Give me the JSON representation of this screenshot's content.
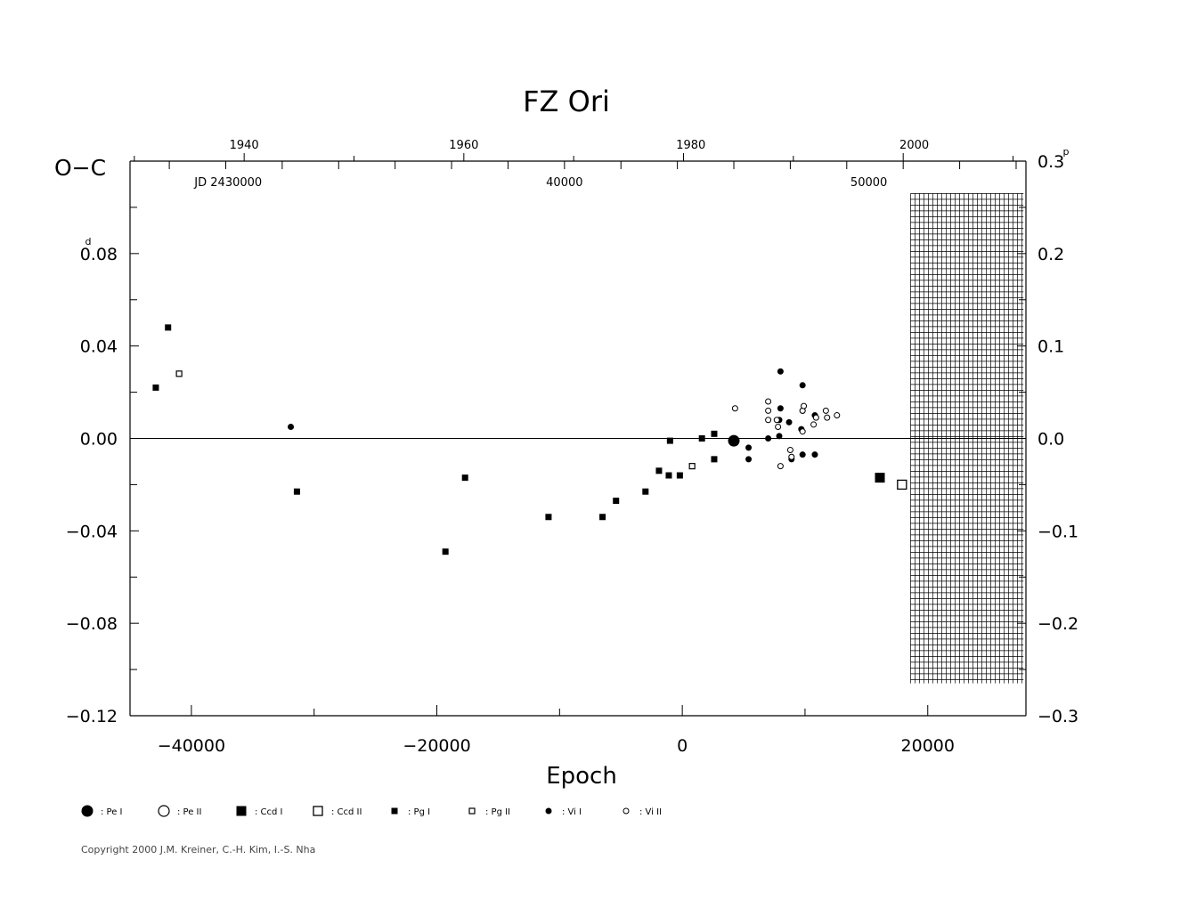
{
  "chart_data": {
    "type": "scatter",
    "title": "FZ  Ori",
    "xlabel": "Epoch",
    "ylabel": "O−C",
    "ylabel_unit_left": "d",
    "ylabel_unit_right": "p",
    "xlim": [
      -45000,
      28000
    ],
    "ylim": [
      -0.12,
      0.12
    ],
    "right_ylim": [
      -0.3,
      0.3
    ],
    "x_ticks": [
      {
        "value": -40000,
        "label": "−40000"
      },
      {
        "value": -20000,
        "label": "−20000"
      },
      {
        "value": 0,
        "label": "0"
      },
      {
        "value": 20000,
        "label": "20000"
      }
    ],
    "y_ticks": [
      {
        "value": 0.08,
        "label": "0.08"
      },
      {
        "value": 0.04,
        "label": "0.04"
      },
      {
        "value": 0.0,
        "label": "0.00"
      },
      {
        "value": -0.04,
        "label": "−0.04"
      },
      {
        "value": -0.08,
        "label": "−0.08"
      },
      {
        "value": -0.12,
        "label": "−0.12"
      }
    ],
    "right_y_ticks": [
      {
        "value": 0.3,
        "label": "0.3"
      },
      {
        "value": 0.2,
        "label": "0.2"
      },
      {
        "value": 0.1,
        "label": "0.1"
      },
      {
        "value": 0.0,
        "label": "0.0"
      },
      {
        "value": -0.1,
        "label": "−0.1"
      },
      {
        "value": -0.2,
        "label": "−0.2"
      },
      {
        "value": -0.3,
        "label": "−0.3"
      }
    ],
    "year_ticks": [
      {
        "epoch": -35700,
        "label": "1940"
      },
      {
        "epoch": -17800,
        "label": "1960"
      },
      {
        "epoch": 700,
        "label": "1980"
      },
      {
        "epoch": 18900,
        "label": "2000"
      }
    ],
    "jd_labels": [
      {
        "epoch": -37000,
        "label": "JD  2430000"
      },
      {
        "epoch": -9600,
        "label": "40000"
      },
      {
        "epoch": 15200,
        "label": "50000"
      }
    ],
    "hatch_region": {
      "x_start": 18600,
      "x_end": 27800,
      "y_start": -0.106,
      "y_end": 0.106
    },
    "legend": [
      {
        "symbol": "big-filled-circle",
        "label": ": Pe  I"
      },
      {
        "symbol": "big-open-circle",
        "label": ": Pe  II"
      },
      {
        "symbol": "big-filled-square",
        "label": ": Ccd  I"
      },
      {
        "symbol": "big-open-square",
        "label": ": Ccd  II"
      },
      {
        "symbol": "small-filled-square",
        "label": ": Pg  I"
      },
      {
        "symbol": "small-open-square",
        "label": ": Pg  II"
      },
      {
        "symbol": "small-filled-circle",
        "label": ": Vi  I"
      },
      {
        "symbol": "small-open-circle",
        "label": ": Vi  II"
      }
    ],
    "series": [
      {
        "symbol": "big-filled-circle",
        "points": [
          [
            4200,
            -0.001
          ]
        ]
      },
      {
        "symbol": "big-filled-square",
        "points": [
          [
            16100,
            -0.017
          ]
        ]
      },
      {
        "symbol": "big-open-square",
        "points": [
          [
            17900,
            -0.02
          ]
        ]
      },
      {
        "symbol": "small-filled-square",
        "points": [
          [
            -42900,
            0.022
          ],
          [
            -41900,
            0.048
          ],
          [
            -31400,
            -0.023
          ],
          [
            -19300,
            -0.049
          ],
          [
            -17700,
            -0.017
          ],
          [
            -10900,
            -0.034
          ],
          [
            -6500,
            -0.034
          ],
          [
            -5400,
            -0.027
          ],
          [
            -3000,
            -0.023
          ],
          [
            -1900,
            -0.014
          ],
          [
            -1100,
            -0.016
          ],
          [
            -1000,
            -0.001
          ],
          [
            -200,
            -0.016
          ],
          [
            1600,
            0.0
          ],
          [
            2600,
            -0.009
          ],
          [
            2600,
            0.002
          ]
        ]
      },
      {
        "symbol": "small-open-square",
        "points": [
          [
            -41000,
            0.028
          ],
          [
            800,
            -0.012
          ]
        ]
      },
      {
        "symbol": "small-filled-circle",
        "points": [
          [
            -31900,
            0.005
          ],
          [
            5400,
            -0.004
          ],
          [
            5400,
            -0.009
          ],
          [
            7000,
            0.0
          ],
          [
            7900,
            0.001
          ],
          [
            7900,
            0.008
          ],
          [
            8000,
            0.013
          ],
          [
            8000,
            0.029
          ],
          [
            8700,
            0.007
          ],
          [
            8900,
            -0.009
          ],
          [
            9700,
            0.004
          ],
          [
            9800,
            -0.007
          ],
          [
            9800,
            0.012
          ],
          [
            9800,
            0.023
          ],
          [
            10800,
            -0.007
          ],
          [
            10800,
            0.01
          ]
        ]
      },
      {
        "symbol": "small-open-circle",
        "points": [
          [
            4300,
            0.013
          ],
          [
            7000,
            0.008
          ],
          [
            7000,
            0.012
          ],
          [
            7000,
            0.016
          ],
          [
            7700,
            0.008
          ],
          [
            7800,
            0.005
          ],
          [
            8000,
            -0.012
          ],
          [
            8800,
            -0.005
          ],
          [
            8900,
            -0.008
          ],
          [
            9800,
            0.003
          ],
          [
            9800,
            0.012
          ],
          [
            9900,
            0.014
          ],
          [
            10700,
            0.006
          ],
          [
            10900,
            0.009
          ],
          [
            11700,
            0.012
          ],
          [
            11800,
            0.009
          ],
          [
            12600,
            0.01
          ]
        ]
      }
    ]
  },
  "copyright": "Copyright 2000 J.M. Kreiner, C.-H. Kim, I.-S. Nha"
}
